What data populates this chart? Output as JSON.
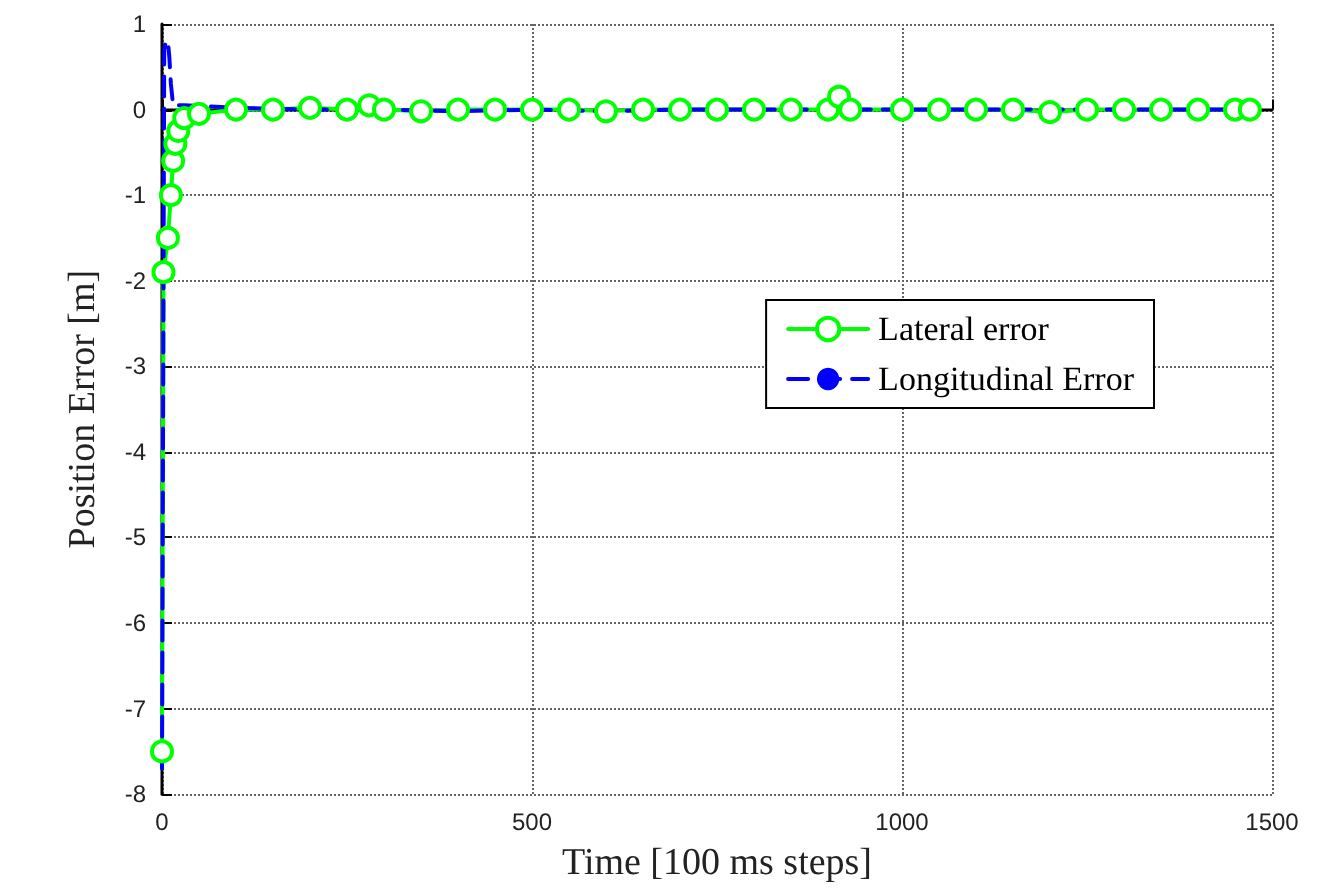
{
  "chart_data": {
    "type": "line",
    "xlabel": "Time [100 ms steps]",
    "ylabel": "Position Error [m]",
    "xlim": [
      0,
      1500
    ],
    "xticks": [
      0,
      500,
      1000,
      1500
    ],
    "ylim": [
      -8,
      1
    ],
    "yticks": [
      1,
      0,
      -1,
      -2,
      -3,
      -4,
      -5,
      -6,
      -7,
      -8
    ],
    "grid": true,
    "legend": "right",
    "series": [
      {
        "name": "Lateral error",
        "color": "#00ff00",
        "marker": "circle",
        "line_style": "solid",
        "x": [
          0,
          2,
          8,
          12,
          15,
          18,
          22,
          30,
          50,
          100,
          150,
          200,
          250,
          280,
          300,
          350,
          400,
          450,
          500,
          550,
          600,
          650,
          700,
          750,
          800,
          850,
          900,
          915,
          930,
          1000,
          1050,
          1100,
          1150,
          1200,
          1250,
          1300,
          1350,
          1400,
          1450,
          1470
        ],
        "values": [
          -7.5,
          -1.9,
          -1.5,
          -1,
          -0.6,
          -0.4,
          -0.25,
          -0.1,
          -0.05,
          0,
          0,
          0.02,
          0,
          0.05,
          0,
          -0.02,
          0,
          0,
          0,
          0,
          -0.02,
          0,
          0,
          0,
          0,
          0,
          0,
          0.15,
          0,
          0,
          0,
          0,
          0,
          -0.03,
          0,
          0,
          0,
          0,
          0,
          0
        ]
      },
      {
        "name": "Longitudinal Error",
        "color": "#0000ff",
        "marker": "none",
        "line_style": "dashed",
        "x": [
          0,
          3,
          5,
          8,
          10,
          12,
          15,
          30,
          100,
          200,
          300,
          400,
          500,
          600,
          700,
          800,
          900,
          1000,
          1100,
          1200,
          1300,
          1400,
          1470
        ],
        "values": [
          -7.7,
          0.7,
          0.8,
          0.8,
          0.6,
          0.3,
          0.05,
          0.05,
          0.02,
          0,
          0,
          -0.02,
          0,
          -0.02,
          0,
          0,
          0,
          0,
          0,
          0,
          0,
          0,
          0
        ]
      }
    ]
  }
}
